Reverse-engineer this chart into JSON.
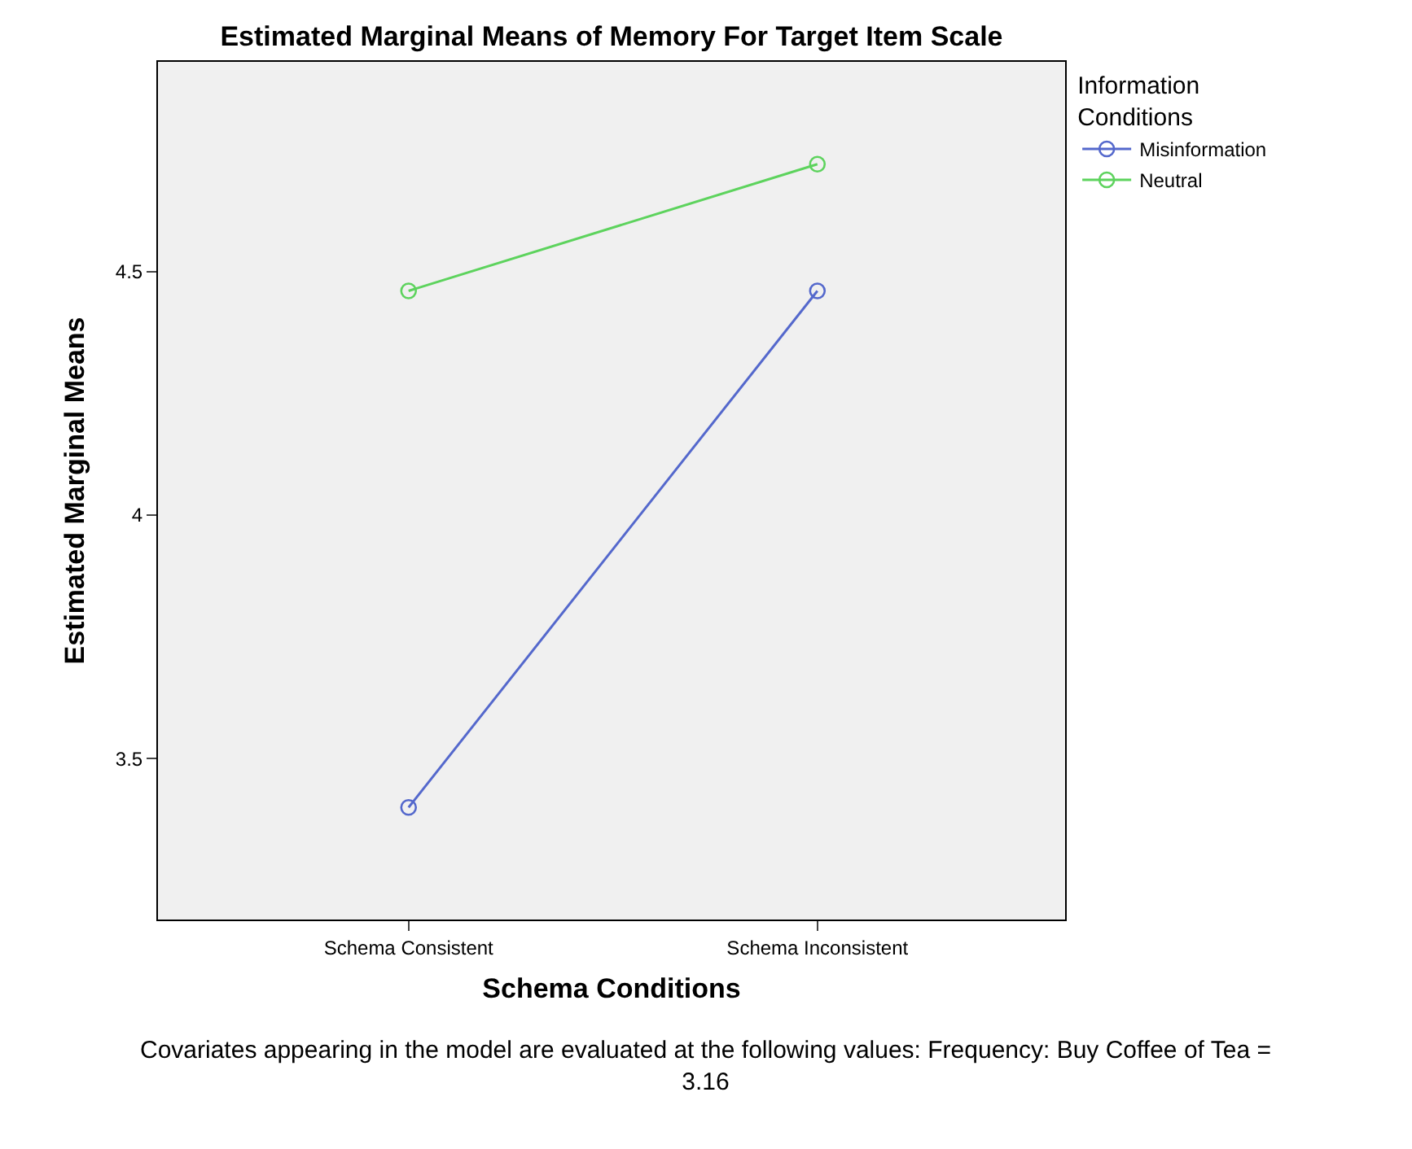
{
  "chart_data": {
    "type": "line",
    "title": "Estimated Marginal Means of Memory For Target Item Scale",
    "xlabel": "Schema Conditions",
    "ylabel": "Estimated Marginal Means",
    "legend_title": "Information\nConditions",
    "categories": [
      "Schema Consistent",
      "Schema Inconsistent"
    ],
    "series": [
      {
        "name": "Misinformation",
        "color": "#5468cc",
        "values": [
          3.4,
          4.46
        ]
      },
      {
        "name": "Neutral",
        "color": "#5dd35d",
        "values": [
          4.46,
          4.72
        ]
      }
    ],
    "ylim": [
      3.17,
      4.93
    ],
    "yticks": [
      3.5,
      4,
      4.5
    ],
    "grid": false,
    "legend": "top right",
    "marker": "circle",
    "line_style": "solid",
    "annotations": [
      "Covariates appearing in the model are evaluated at the following values: Frequency: Buy Coffee of Tea =\n3.16"
    ]
  }
}
